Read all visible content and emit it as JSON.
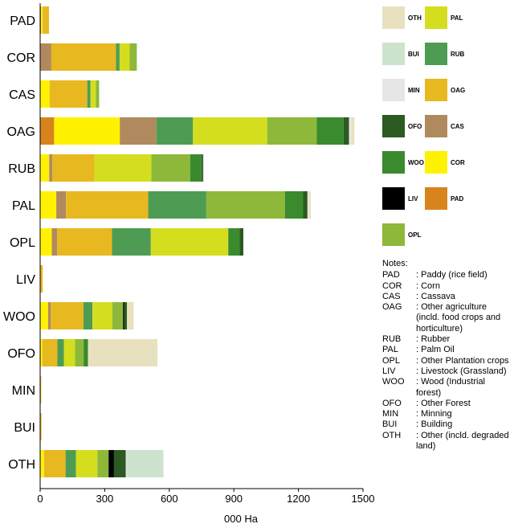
{
  "chart_data": {
    "type": "bar",
    "orientation": "horizontal",
    "stacked": true,
    "categories": [
      "PAD",
      "COR",
      "CAS",
      "OAG",
      "RUB",
      "PAL",
      "OPL",
      "LIV",
      "WOO",
      "OFO",
      "MIN",
      "BUI",
      "OTH"
    ],
    "xlabel": "000 Ha",
    "xlim": [
      0,
      1500
    ],
    "xticks": [
      0,
      300,
      600,
      900,
      1200,
      1500
    ],
    "grid": false,
    "legend_position": "right",
    "series": [
      {
        "name": "PAD",
        "color": "#D8841C",
        "values": [
          4,
          0,
          0,
          65,
          0,
          0,
          0,
          0,
          0,
          0,
          0,
          0,
          0
        ]
      },
      {
        "name": "COR",
        "color": "#FFF200",
        "values": [
          8,
          0,
          44,
          305,
          42,
          75,
          54,
          0,
          37,
          10,
          0,
          0,
          18
        ]
      },
      {
        "name": "CAS",
        "color": "#B08A5E",
        "values": [
          2,
          52,
          0,
          170,
          15,
          45,
          25,
          0,
          12,
          0,
          0,
          0,
          0
        ]
      },
      {
        "name": "OAG",
        "color": "#E8B820",
        "values": [
          27,
          300,
          175,
          0,
          195,
          382,
          255,
          12,
          152,
          70,
          5,
          6,
          100
        ]
      },
      {
        "name": "RUB",
        "color": "#4E9C53",
        "values": [
          0,
          17,
          15,
          170,
          0,
          270,
          180,
          0,
          42,
          30,
          0,
          0,
          48
        ]
      },
      {
        "name": "PAL",
        "color": "#D4DE1E",
        "values": [
          0,
          47,
          25,
          345,
          265,
          0,
          360,
          0,
          92,
          52,
          0,
          0,
          100
        ]
      },
      {
        "name": "OPL",
        "color": "#8DB83A",
        "values": [
          0,
          33,
          15,
          230,
          180,
          365,
          0,
          0,
          50,
          40,
          0,
          0,
          52
        ]
      },
      {
        "name": "WOO",
        "color": "#3A8A2E",
        "values": [
          0,
          0,
          0,
          125,
          52,
          85,
          52,
          0,
          0,
          20,
          0,
          0,
          0
        ]
      },
      {
        "name": "LIV",
        "color": "#000000",
        "values": [
          0,
          0,
          0,
          0,
          0,
          0,
          0,
          0,
          6,
          0,
          0,
          0,
          25
        ]
      },
      {
        "name": "OFO",
        "color": "#2C5A22",
        "values": [
          0,
          0,
          0,
          25,
          8,
          20,
          18,
          0,
          12,
          0,
          0,
          0,
          55
        ]
      },
      {
        "name": "MIN",
        "color": "#E6E6E6",
        "values": [
          0,
          0,
          0,
          10,
          5,
          5,
          0,
          0,
          0,
          0,
          0,
          0,
          5
        ]
      },
      {
        "name": "BUI",
        "color": "#CDE3CE",
        "values": [
          0,
          0,
          0,
          0,
          0,
          0,
          0,
          0,
          0,
          0,
          0,
          0,
          170
        ]
      },
      {
        "name": "OTH",
        "color": "#E8E1C0",
        "values": [
          0,
          0,
          0,
          15,
          0,
          10,
          0,
          0,
          32,
          323,
          0,
          0,
          0
        ]
      }
    ]
  },
  "legend": [
    {
      "label": "OTH",
      "color": "#E8E1C0"
    },
    {
      "label": "PAL",
      "color": "#D4DE1E"
    },
    {
      "label": "BUI",
      "color": "#CDE3CE"
    },
    {
      "label": "RUB",
      "color": "#4E9C53"
    },
    {
      "label": "MIN",
      "color": "#E6E6E6"
    },
    {
      "label": "OAG",
      "color": "#E8B820"
    },
    {
      "label": "OFO",
      "color": "#2C5A22"
    },
    {
      "label": "CAS",
      "color": "#B08A5E"
    },
    {
      "label": "WOO",
      "color": "#3A8A2E"
    },
    {
      "label": "COR",
      "color": "#FFF200"
    },
    {
      "label": "LIV",
      "color": "#000000"
    },
    {
      "label": "PAD",
      "color": "#D8841C"
    },
    {
      "label": "OPL",
      "color": "#8DB83A"
    }
  ],
  "notes": {
    "title": "Notes:",
    "items": [
      {
        "code": "PAD",
        "desc": ": Paddy (rice field)"
      },
      {
        "code": "COR",
        "desc": ": Corn"
      },
      {
        "code": "CAS",
        "desc": ": Cassava"
      },
      {
        "code": "OAG",
        "desc": ": Other agriculture (incld. food crops and horticulture)"
      },
      {
        "code": "RUB",
        "desc": ": Rubber"
      },
      {
        "code": "PAL",
        "desc": ": Palm Oil"
      },
      {
        "code": "OPL",
        "desc": ": Other Plantation crops"
      },
      {
        "code": "LIV",
        "desc": ": Livestock (Grassland)"
      },
      {
        "code": "WOO",
        "desc": ": Wood (Industrial forest)"
      },
      {
        "code": "OFO",
        "desc": ": Other Forest"
      },
      {
        "code": "MIN",
        "desc": ": Minning"
      },
      {
        "code": "BUI",
        "desc": ": Building"
      },
      {
        "code": "OTH",
        "desc": ": Other (incld. degraded land)"
      }
    ]
  }
}
